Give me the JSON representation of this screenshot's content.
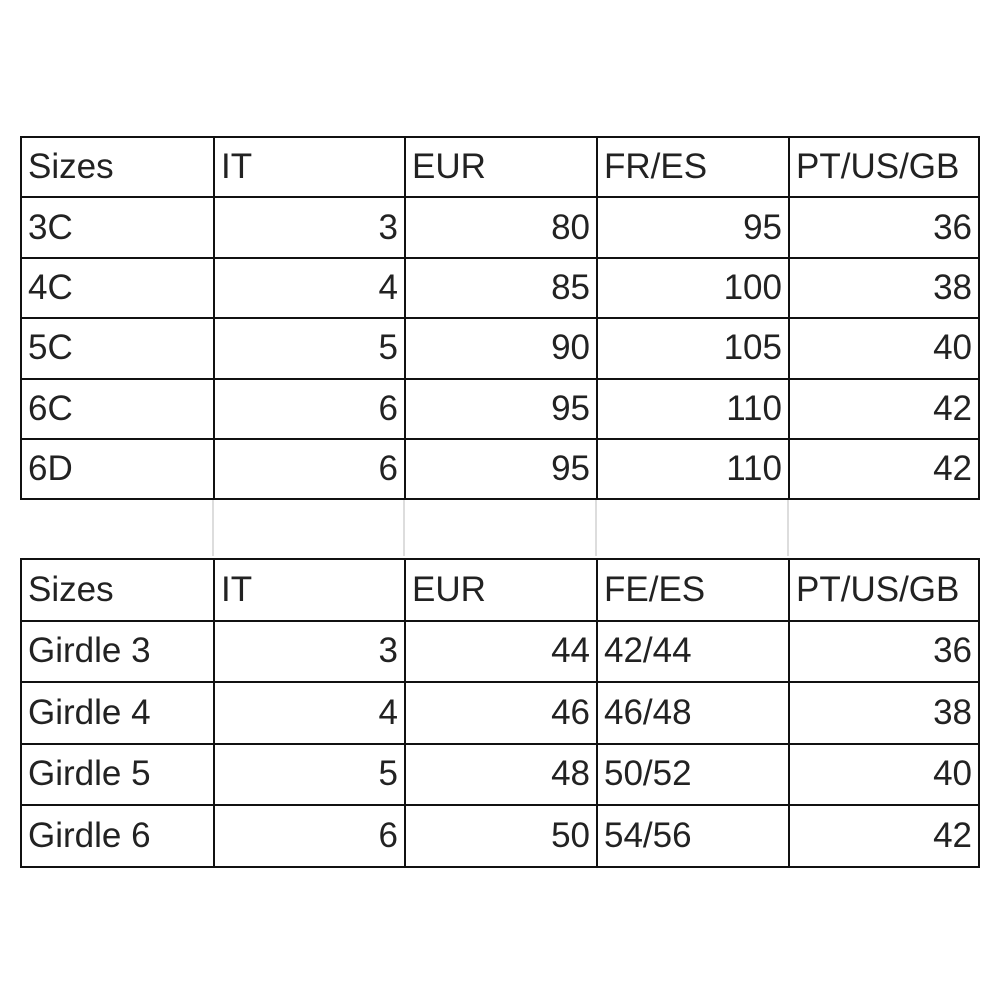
{
  "tables": [
    {
      "header": [
        "Sizes",
        "IT",
        "EUR",
        "FR/ES",
        "PT/US/GB"
      ],
      "rows": [
        [
          "3C",
          3,
          80,
          95,
          36
        ],
        [
          "4C",
          4,
          85,
          100,
          38
        ],
        [
          "5C",
          5,
          90,
          105,
          40
        ],
        [
          "6C",
          6,
          95,
          110,
          42
        ],
        [
          "6D",
          6,
          95,
          110,
          42
        ]
      ]
    },
    {
      "header": [
        "Sizes",
        "IT",
        "EUR",
        "FE/ES",
        "PT/US/GB"
      ],
      "rows": [
        [
          "Girdle 3",
          3,
          44,
          "42/44",
          36
        ],
        [
          "Girdle 4",
          4,
          46,
          "46/48",
          38
        ],
        [
          "Girdle 5",
          5,
          48,
          "50/52",
          40
        ],
        [
          "Girdle 6",
          6,
          50,
          "54/56",
          42
        ]
      ]
    }
  ]
}
